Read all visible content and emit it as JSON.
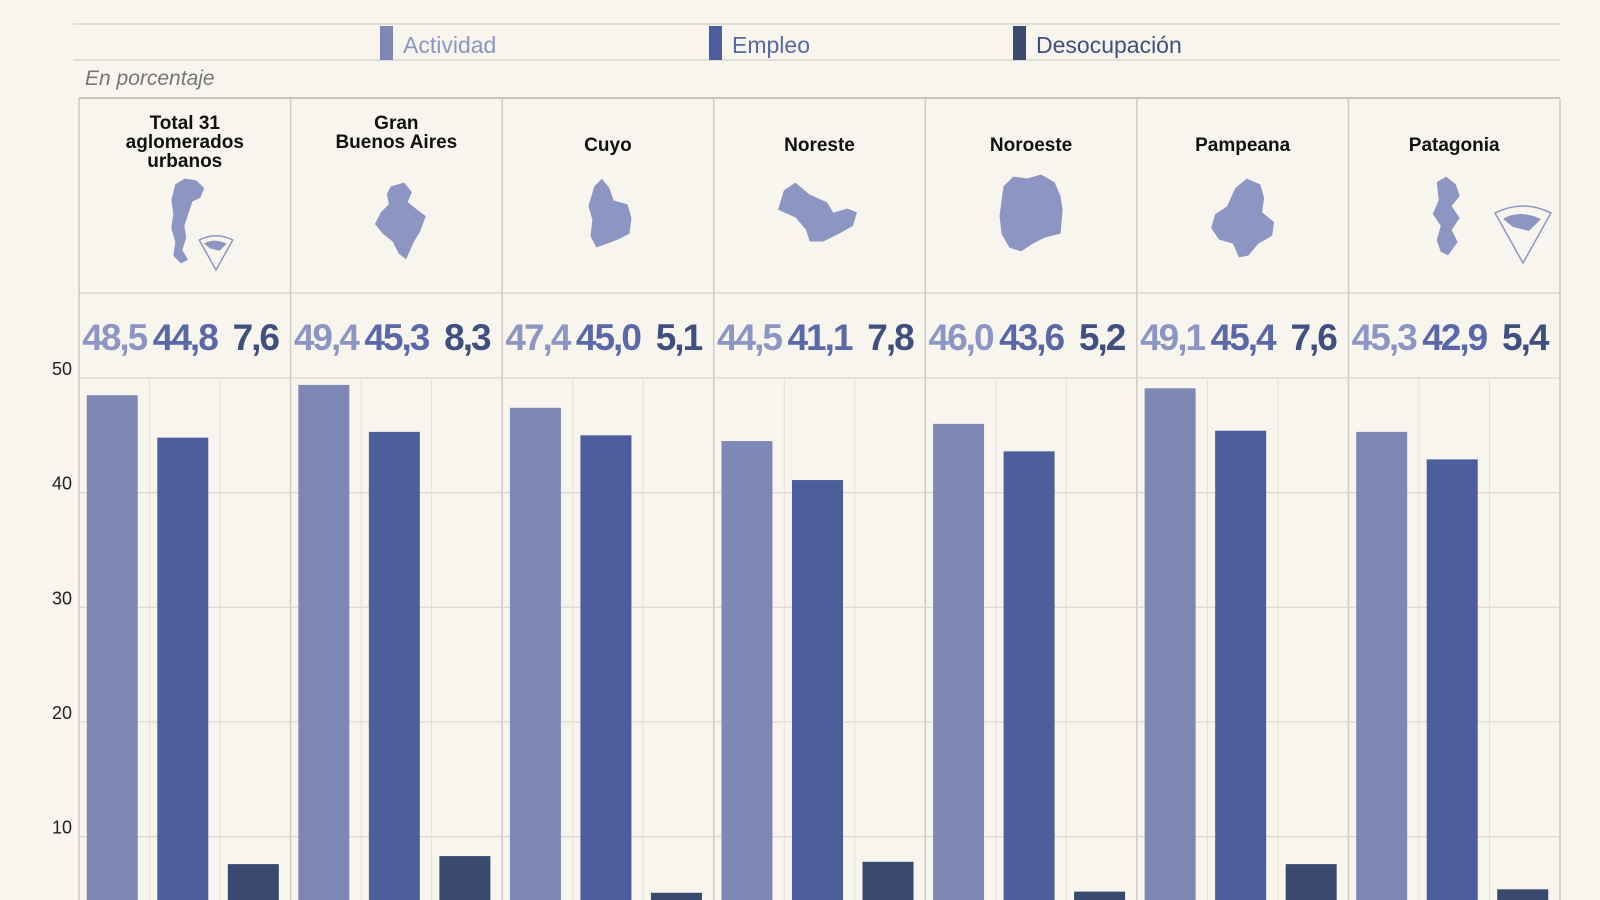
{
  "legend": {
    "items": [
      {
        "label": "Actividad",
        "color": "#7f88b5",
        "text_color": "#8d96c2"
      },
      {
        "label": "Empleo",
        "color": "#4d5e9c",
        "text_color": "#5a68a8"
      },
      {
        "label": "Desocupación",
        "color": "#3a4a6e",
        "text_color": "#3f4f7e"
      }
    ]
  },
  "unit_label": "En porcentaje",
  "colors": {
    "background": "#f7f5ee",
    "grid": "#dad6cc",
    "map_fill": "#8d96c2"
  },
  "chart_data": {
    "type": "bar",
    "categories": [
      "Total 31 aglomerados urbanos",
      "Gran Buenos Aires",
      "Cuyo",
      "Noreste",
      "Noroeste",
      "Pampeana",
      "Patagonia"
    ],
    "category_labels": [
      [
        "Total 31",
        "aglomerados",
        "urbanos"
      ],
      [
        "Gran",
        "Buenos Aires"
      ],
      [
        "Cuyo"
      ],
      [
        "Noreste"
      ],
      [
        "Noroeste"
      ],
      [
        "Pampeana"
      ],
      [
        "Patagonia"
      ]
    ],
    "series": [
      {
        "name": "Actividad",
        "values": [
          48.5,
          49.4,
          47.4,
          44.5,
          46.0,
          49.1,
          45.3
        ],
        "labels": [
          "48,5",
          "49,4",
          "47,4",
          "44,5",
          "46,0",
          "49,1",
          "45,3"
        ]
      },
      {
        "name": "Empleo",
        "values": [
          44.8,
          45.3,
          45.0,
          41.1,
          43.6,
          45.4,
          42.9
        ],
        "labels": [
          "44,8",
          "45,3",
          "45,0",
          "41,1",
          "43,6",
          "45,4",
          "42,9"
        ]
      },
      {
        "name": "Desocupación",
        "values": [
          7.6,
          8.3,
          5.1,
          7.8,
          5.2,
          7.6,
          5.4
        ],
        "labels": [
          "7,6",
          "8,3",
          "5,1",
          "7,8",
          "5,2",
          "7,6",
          "5,4"
        ]
      }
    ],
    "yticks": [
      "10",
      "20",
      "30",
      "40",
      "50"
    ],
    "ylim": [
      0,
      50
    ],
    "grid": true,
    "legend_position": "top"
  }
}
